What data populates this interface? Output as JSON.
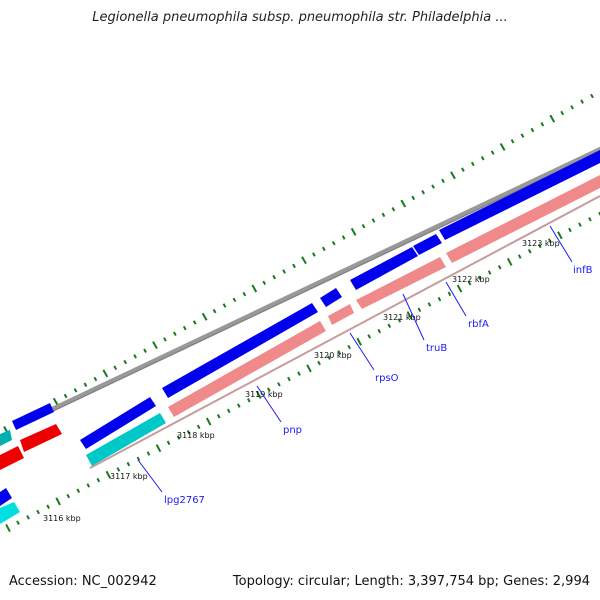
{
  "title": "Legionella pneumophila subsp. pneumophila str. Philadelphia ...",
  "footer": {
    "accession": "Accession: NC_002942",
    "topology": "Topology: circular; Length: 3,397,754 bp; Genes: 2,994"
  },
  "kbp_ticks": [
    {
      "label": "3116 kbp"
    },
    {
      "label": "3117 kbp"
    },
    {
      "label": "3118 kbp"
    },
    {
      "label": "3119 kbp"
    },
    {
      "label": "3120 kbp"
    },
    {
      "label": "3121 kbp"
    },
    {
      "label": "3122 kbp"
    },
    {
      "label": "3123 kbp"
    }
  ],
  "genes": [
    {
      "label": "lpg2767"
    },
    {
      "label": "pnp"
    },
    {
      "label": "rpsO"
    },
    {
      "label": "truB"
    },
    {
      "label": "rbfA"
    },
    {
      "label": "infB"
    }
  ],
  "colors": {
    "forward_strand": "#0000ee",
    "reverse_pink": "#f08a8a",
    "reverse_cyan": "#00d0d0",
    "reverse_red": "#ee0000",
    "backbone": "#888888",
    "tick_marks": "#1a7a1a",
    "gene_label": "#1a1aff"
  }
}
